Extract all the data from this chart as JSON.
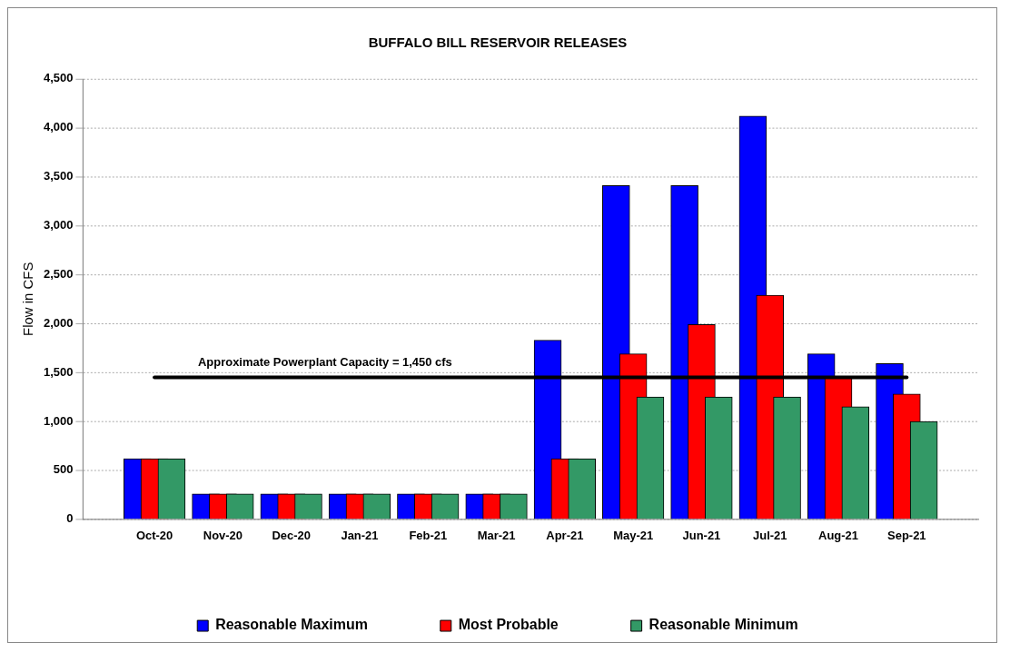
{
  "chart_data": {
    "type": "bar",
    "title": "BUFFALO BILL RESERVOIR RELEASES",
    "ylabel": "Flow in CFS",
    "categories": [
      "Oct-20",
      "Nov-20",
      "Dec-20",
      "Jan-21",
      "Feb-21",
      "Mar-21",
      "Apr-21",
      "May-21",
      "Jun-21",
      "Jul-21",
      "Aug-21",
      "Sep-21"
    ],
    "series": [
      {
        "name": "Reasonable Maximum",
        "color": "#0000ff",
        "values": [
          620,
          260,
          260,
          260,
          260,
          260,
          1830,
          3410,
          3410,
          4120,
          1690,
          1590
        ]
      },
      {
        "name": "Most Probable",
        "color": "#ff0000",
        "values": [
          620,
          260,
          260,
          260,
          260,
          260,
          620,
          1690,
          1990,
          2290,
          1450,
          1280
        ]
      },
      {
        "name": "Reasonable Minimum",
        "color": "#339966",
        "values": [
          620,
          260,
          260,
          260,
          260,
          260,
          620,
          1250,
          1250,
          1250,
          1150,
          1000
        ]
      }
    ],
    "ylim": [
      0,
      4500
    ],
    "yticks": [
      {
        "value": 0,
        "label": "0"
      },
      {
        "value": 500,
        "label": "500"
      },
      {
        "value": 1000,
        "label": "1,000"
      },
      {
        "value": 1500,
        "label": "1,500"
      },
      {
        "value": 2000,
        "label": "2,000"
      },
      {
        "value": 2500,
        "label": "2,500"
      },
      {
        "value": 3000,
        "label": "3,000"
      },
      {
        "value": 3500,
        "label": "3,500"
      },
      {
        "value": 4000,
        "label": "4,000"
      },
      {
        "value": 4500,
        "label": "4,500"
      }
    ],
    "grid": "y",
    "legend": "bottom",
    "ref_lines": [
      {
        "axis": "y",
        "value": 1450,
        "label": "Approximate Powerplant Capacity = 1,450 cfs",
        "color": "#000000"
      }
    ]
  }
}
